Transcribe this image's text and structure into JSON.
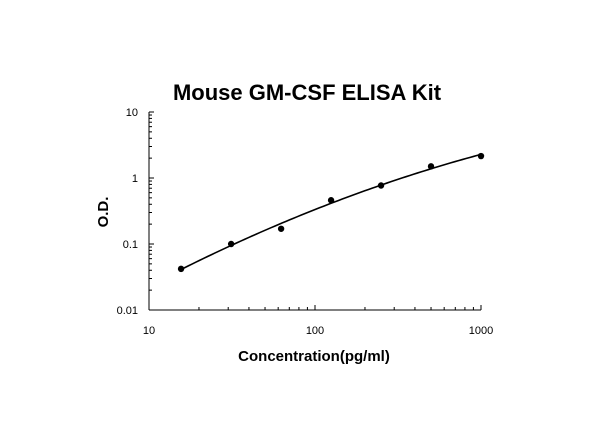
{
  "chart_data": {
    "type": "scatter",
    "title": "Mouse GM-CSF ELISA Kit",
    "xlabel": "Concentration(pg/ml)",
    "ylabel": "O.D.",
    "x_scale": "log",
    "y_scale": "log",
    "xlim": [
      10,
      1000
    ],
    "ylim": [
      0.01,
      10
    ],
    "x_ticks": [
      "10",
      "100",
      "1000"
    ],
    "y_ticks": [
      "0.01",
      "0.1",
      "1",
      "10"
    ],
    "grid": false,
    "legend": "none",
    "series": [
      {
        "x": [
          15.6,
          31.25,
          62.5,
          125,
          250,
          500,
          1000
        ],
        "y": [
          0.042,
          0.1,
          0.17,
          0.46,
          0.77,
          1.5,
          2.15
        ],
        "fit_curve": true
      }
    ],
    "colors": {
      "points": "#000000",
      "curve": "#000000",
      "axis": "#000000"
    }
  }
}
